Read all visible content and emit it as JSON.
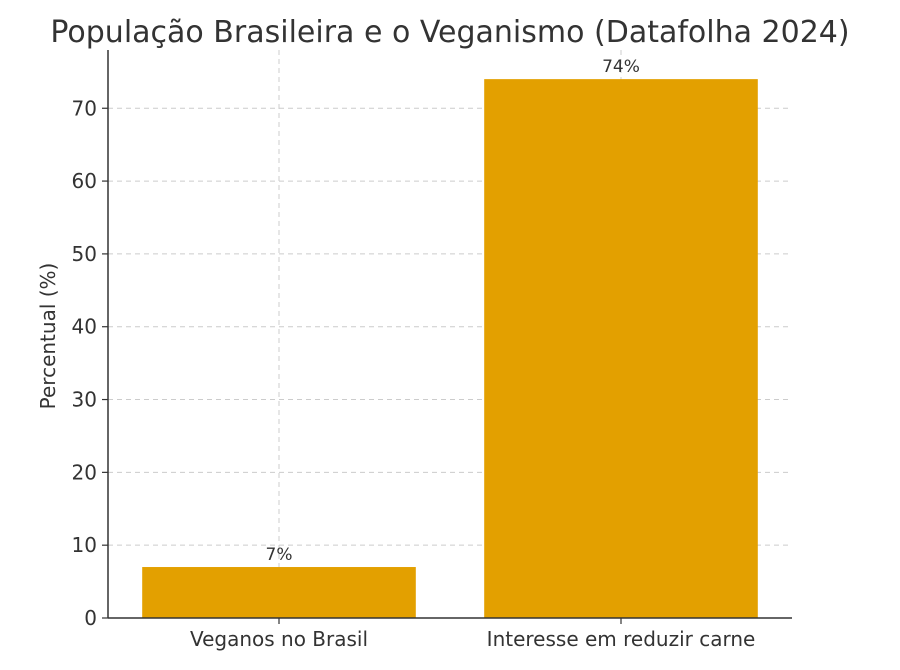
{
  "chart_data": {
    "type": "bar",
    "title": "População Brasileira e o Veganismo (Datafolha 2024)",
    "xlabel": "",
    "ylabel": "Percentual (%)",
    "categories": [
      "Veganos no Brasil",
      "Interesse em reduzir carne"
    ],
    "values": [
      7,
      74
    ],
    "data_labels": [
      "7%",
      "74%"
    ],
    "ylim": [
      0,
      78
    ],
    "yticks": [
      0,
      10,
      20,
      30,
      40,
      50,
      60,
      70
    ],
    "grid": true,
    "legend": "none",
    "colors": {
      "bar": "#E3A000",
      "text": "#333333",
      "grid": "#cccccc"
    }
  }
}
